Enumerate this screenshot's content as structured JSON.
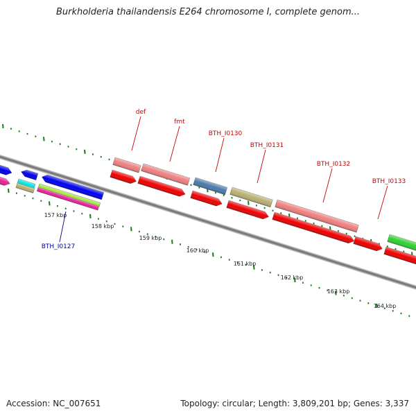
{
  "title": "Burkholderia thailandensis E264 chromosome I, complete genom...",
  "footer": {
    "accession": "Accession: NC_007651",
    "summary": "Topology: circular; Length: 3,809,201 bp; Genes: 3,337"
  },
  "ticks": [
    "157 kbp",
    "158 kbp",
    "159 kbp",
    "160 kbp",
    "161 kbp",
    "162 kbp",
    "163 kbp",
    "164 kbp"
  ],
  "gene_labels": [
    {
      "name": "def",
      "color": "#cc0000"
    },
    {
      "name": "fmt",
      "color": "#cc0000"
    },
    {
      "name": "BTH_I0130",
      "color": "#cc0000"
    },
    {
      "name": "BTH_I0131",
      "color": "#cc0000"
    },
    {
      "name": "BTH_I0132",
      "color": "#cc0000"
    },
    {
      "name": "BTH_I0133",
      "color": "#cc0000"
    },
    {
      "name": "BTH_I0127",
      "color": "#000099"
    }
  ],
  "colors": {
    "backbone": "#7a7a7a",
    "tick": "#1a7a1a",
    "red": "#ee0000",
    "pink": "#ee8080",
    "blue": "#0000ee",
    "steel": "#4a7aaa",
    "khaki": "#b8b070",
    "cyan": "#00e8e8",
    "lime": "#a8e840",
    "magenta": "#e8209a",
    "green": "#30d030"
  }
}
